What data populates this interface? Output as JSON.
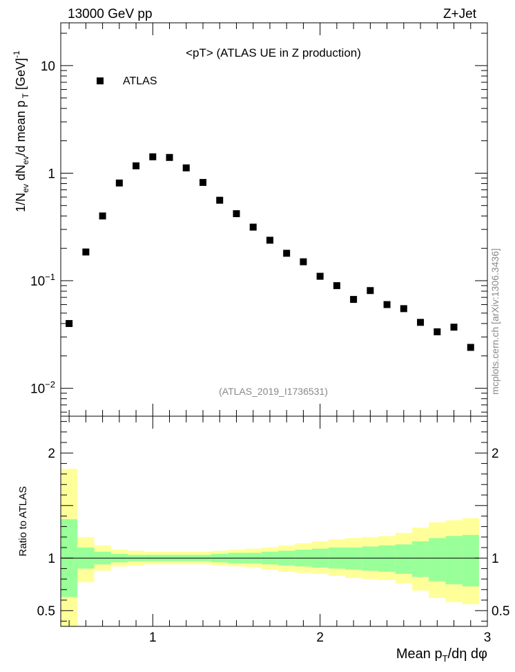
{
  "header": {
    "left": "13000 GeV pp",
    "right": "Z+Jet"
  },
  "side_label": "mcplots.cern.ch [arXiv:1306.3436]",
  "chart_data": [
    {
      "type": "scatter",
      "title": "<pT> (ATLAS UE in Z production)",
      "subtitle": "(ATLAS_2019_I1736531)",
      "ylabel": "1/N_ev dN_ev/d mean p_T [GeV]^-1",
      "xlim": [
        0.45,
        3.0
      ],
      "ylim": [
        0.0055,
        25
      ],
      "yscale": "log",
      "ytick_labels": [
        "10^-2",
        "10^-1",
        "1",
        "10"
      ],
      "legend": {
        "placement": "top-left",
        "entries": [
          "ATLAS"
        ]
      },
      "series": [
        {
          "name": "ATLAS",
          "marker": "square",
          "color": "#000000",
          "x": [
            0.5,
            0.6,
            0.7,
            0.8,
            0.9,
            1.0,
            1.1,
            1.2,
            1.3,
            1.4,
            1.5,
            1.6,
            1.7,
            1.8,
            1.9,
            2.0,
            2.1,
            2.2,
            2.3,
            2.4,
            2.5,
            2.6,
            2.7,
            2.8,
            2.9
          ],
          "y": [
            0.04,
            0.185,
            0.4,
            0.81,
            1.17,
            1.42,
            1.4,
            1.12,
            0.82,
            0.56,
            0.42,
            0.315,
            0.238,
            0.18,
            0.15,
            0.11,
            0.09,
            0.067,
            0.081,
            0.06,
            0.055,
            0.041,
            0.0335,
            0.037,
            0.024
          ]
        }
      ]
    },
    {
      "type": "area",
      "ylabel": "Ratio to ATLAS",
      "xlabel": "Mean p_T/dη dφ",
      "xlim": [
        0.45,
        3.0
      ],
      "ylim": [
        0.35,
        2.35
      ],
      "xtick_labels": [
        "1",
        "2",
        "3"
      ],
      "ytick_labels": [
        "0.5",
        "1",
        "2"
      ],
      "reference_line": 1.0,
      "colors": {
        "outer_band": "#ffff99",
        "inner_band": "#99ff99"
      },
      "bins": {
        "edges": [
          0.45,
          0.55,
          0.65,
          0.75,
          0.85,
          0.95,
          1.05,
          1.15,
          1.25,
          1.35,
          1.45,
          1.55,
          1.65,
          1.75,
          1.85,
          1.95,
          2.05,
          2.15,
          2.25,
          2.35,
          2.45,
          2.55,
          2.65,
          2.75,
          2.85,
          2.95
        ],
        "outer_upper": [
          1.85,
          1.2,
          1.12,
          1.08,
          1.07,
          1.06,
          1.06,
          1.06,
          1.06,
          1.07,
          1.08,
          1.09,
          1.1,
          1.12,
          1.14,
          1.16,
          1.18,
          1.19,
          1.2,
          1.21,
          1.24,
          1.29,
          1.34,
          1.36,
          1.38,
          1.39
        ],
        "outer_lower": [
          0.35,
          0.77,
          0.88,
          0.92,
          0.93,
          0.94,
          0.94,
          0.94,
          0.94,
          0.93,
          0.92,
          0.91,
          0.89,
          0.87,
          0.86,
          0.85,
          0.83,
          0.81,
          0.8,
          0.79,
          0.76,
          0.69,
          0.62,
          0.58,
          0.56,
          0.54
        ],
        "inner_upper": [
          1.37,
          1.1,
          1.06,
          1.04,
          1.03,
          1.03,
          1.03,
          1.03,
          1.03,
          1.04,
          1.05,
          1.05,
          1.06,
          1.07,
          1.08,
          1.09,
          1.1,
          1.1,
          1.11,
          1.12,
          1.13,
          1.16,
          1.19,
          1.21,
          1.22,
          1.24
        ],
        "inner_lower": [
          0.63,
          0.9,
          0.94,
          0.96,
          0.97,
          0.97,
          0.97,
          0.97,
          0.97,
          0.96,
          0.95,
          0.95,
          0.94,
          0.93,
          0.92,
          0.91,
          0.9,
          0.89,
          0.88,
          0.87,
          0.85,
          0.82,
          0.78,
          0.75,
          0.73,
          0.71
        ]
      }
    }
  ]
}
